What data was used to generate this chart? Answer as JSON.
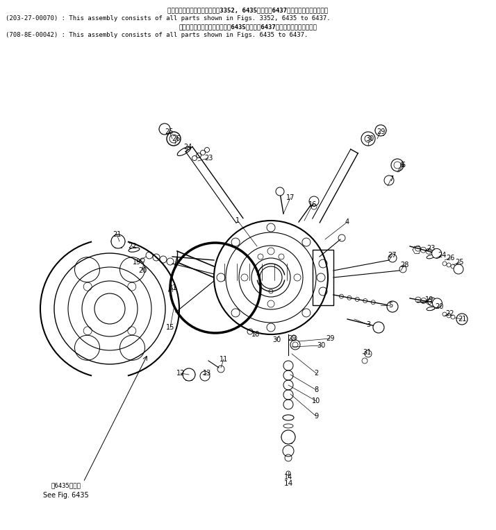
{
  "background_color": "#ffffff",
  "fig_width": 7.14,
  "fig_height": 7.64,
  "dpi": 100,
  "header": [
    {
      "text": "このアセンブリの構成部品は第3352, 6435図から第6437図の部品まで含みます。",
      "indent": "center",
      "bold": true
    },
    {
      "text": "(203-27-00070) : This assembly consists of all parts shown in Figs. 3352, 6435 to 6437.",
      "indent": "left",
      "bold": false
    },
    {
      "text": "このアセンブリの構成部品は第6435図から第6437図の部品まで含みます。",
      "indent": "center",
      "bold": true
    },
    {
      "text": "(708-8E-00042) : This assembly consists of all parts shown in Figs. 6435 to 6437.",
      "indent": "left",
      "bold": false
    }
  ]
}
